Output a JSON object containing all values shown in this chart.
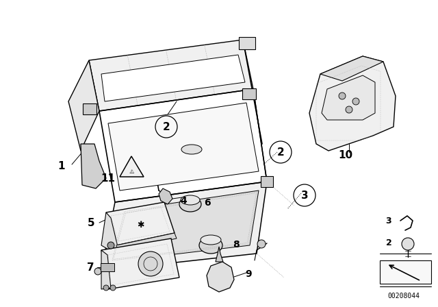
{
  "bg_color": "#ffffff",
  "image_id": "00208044",
  "fig_width": 6.4,
  "fig_height": 4.48,
  "dpi": 100,
  "line_color": "#000000"
}
